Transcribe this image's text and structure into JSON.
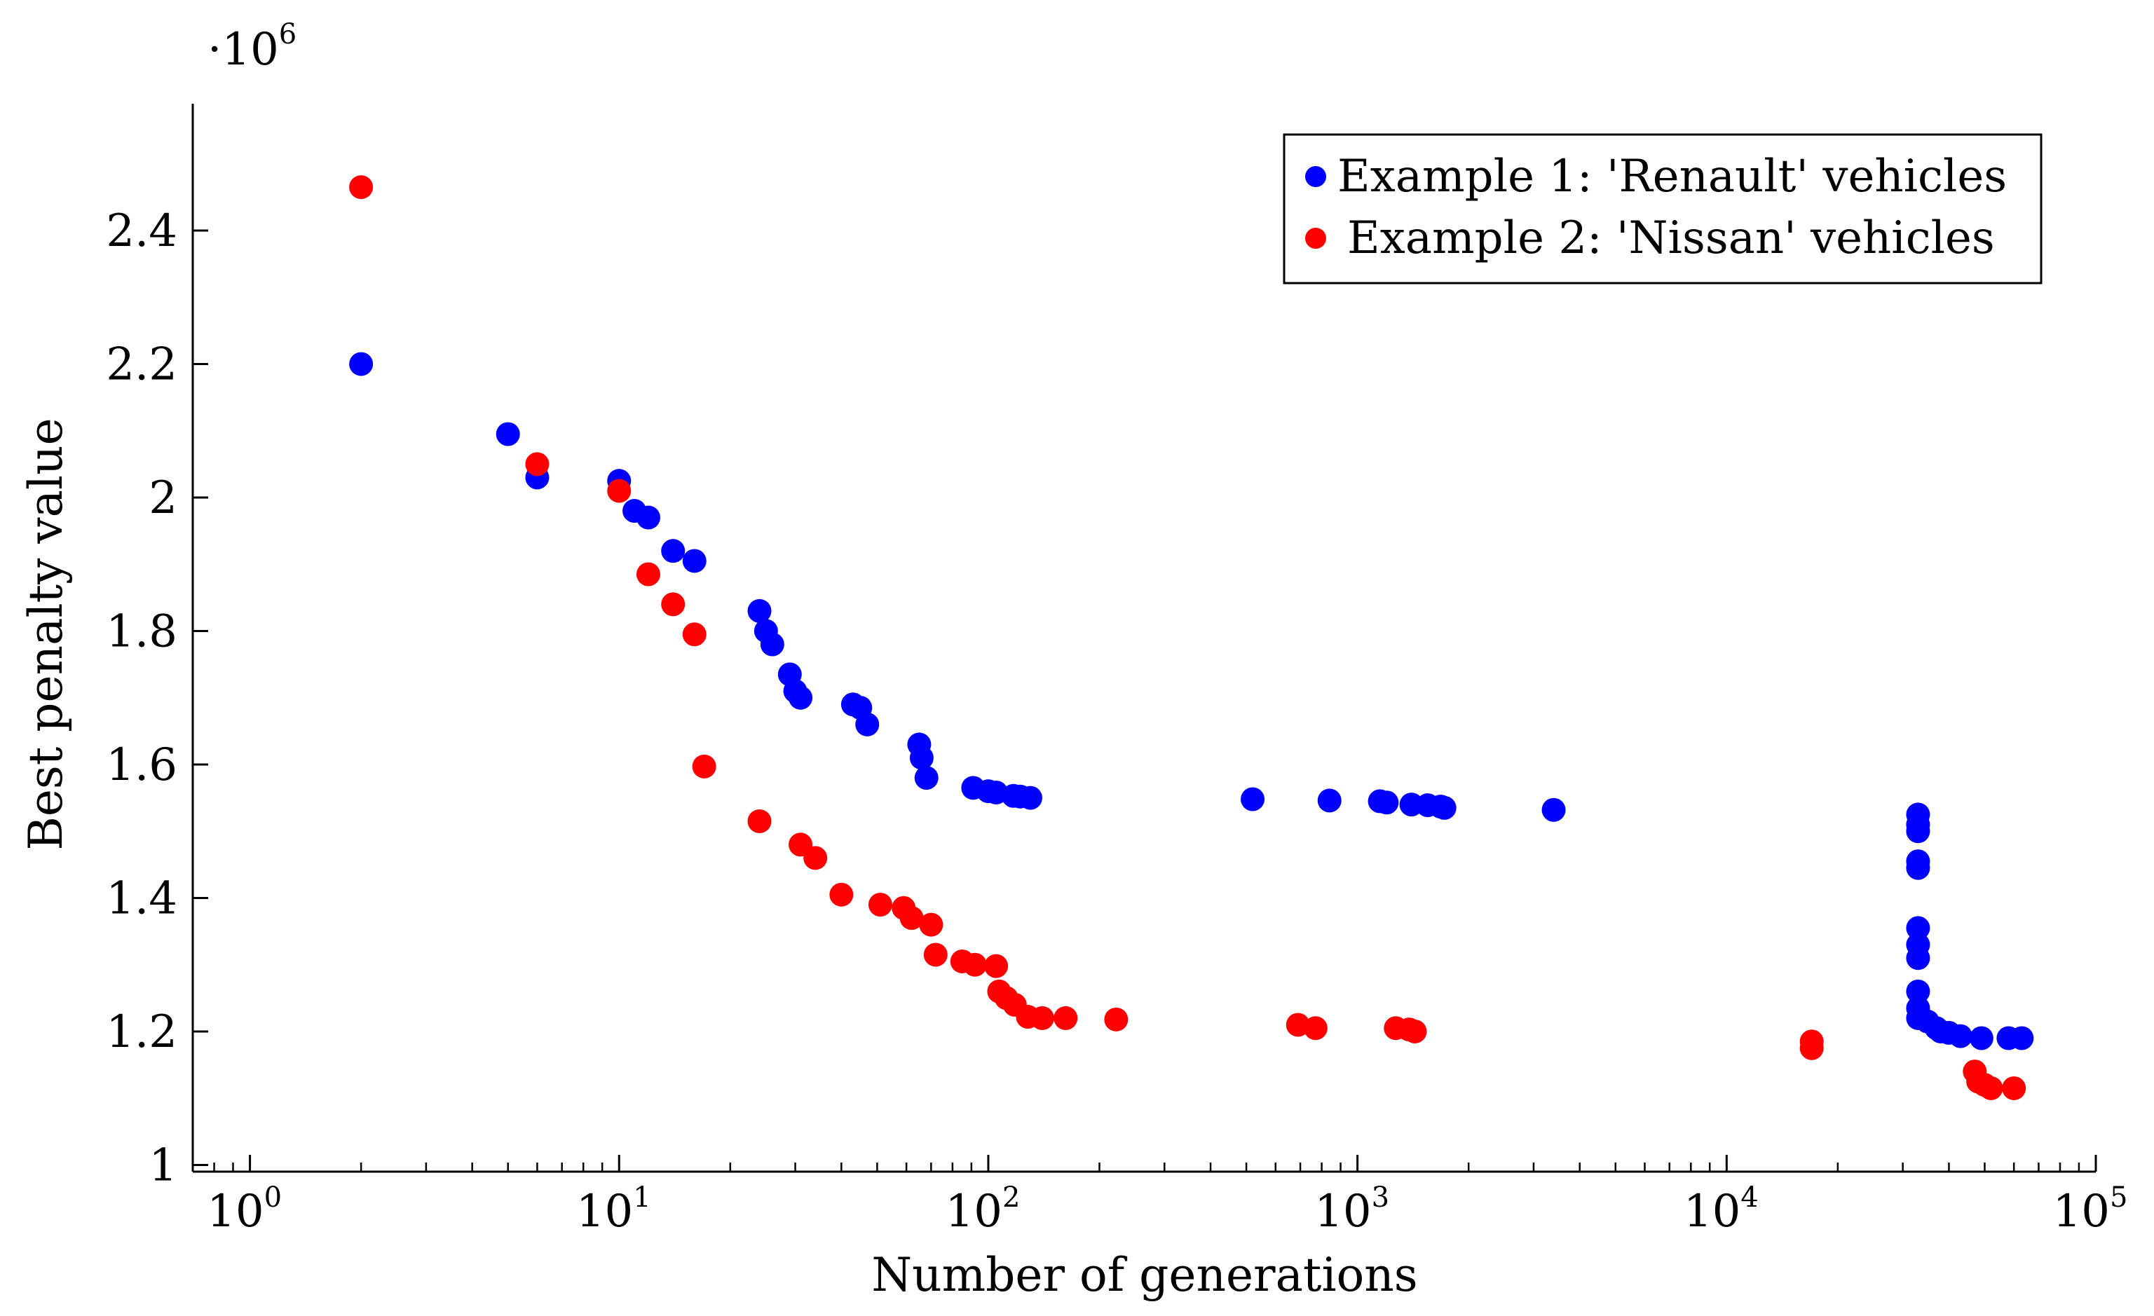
{
  "chart_data": {
    "type": "scatter",
    "title": "",
    "xlabel": "Number of generations",
    "ylabel": "Best penalty value",
    "xscale": "log",
    "xlim": [
      0.7,
      100000
    ],
    "ylim": [
      0.99,
      2.59
    ],
    "y_multiplier": {
      "base": "·10",
      "exp": "6"
    },
    "grid": false,
    "legend_position": "top-right",
    "x_ticks": [
      {
        "base": "10",
        "exp": "0",
        "value": 1
      },
      {
        "base": "10",
        "exp": "1",
        "value": 10
      },
      {
        "base": "10",
        "exp": "2",
        "value": 100
      },
      {
        "base": "10",
        "exp": "3",
        "value": 1000
      },
      {
        "base": "10",
        "exp": "4",
        "value": 10000
      },
      {
        "base": "10",
        "exp": "5",
        "value": 100000
      }
    ],
    "y_ticks": [
      {
        "label": "1",
        "value": 1.0
      },
      {
        "label": "1.2",
        "value": 1.2
      },
      {
        "label": "1.4",
        "value": 1.4
      },
      {
        "label": "1.6",
        "value": 1.6
      },
      {
        "label": "1.8",
        "value": 1.8
      },
      {
        "label": "2",
        "value": 2.0
      },
      {
        "label": "2.2",
        "value": 2.2
      },
      {
        "label": "2.4",
        "value": 2.4
      }
    ],
    "series": [
      {
        "name": "Example 1: 'Renault' vehicles",
        "color": "#0000ff",
        "points": [
          [
            2,
            2.2
          ],
          [
            5,
            2.095
          ],
          [
            6,
            2.03
          ],
          [
            10,
            2.025
          ],
          [
            11,
            1.98
          ],
          [
            12,
            1.97
          ],
          [
            14,
            1.92
          ],
          [
            16,
            1.905
          ],
          [
            24,
            1.83
          ],
          [
            25,
            1.8
          ],
          [
            26,
            1.78
          ],
          [
            29,
            1.735
          ],
          [
            30,
            1.71
          ],
          [
            31,
            1.7
          ],
          [
            43,
            1.69
          ],
          [
            45,
            1.685
          ],
          [
            47,
            1.66
          ],
          [
            65,
            1.63
          ],
          [
            66,
            1.61
          ],
          [
            68,
            1.58
          ],
          [
            91,
            1.565
          ],
          [
            100,
            1.56
          ],
          [
            105,
            1.558
          ],
          [
            117,
            1.553
          ],
          [
            122,
            1.552
          ],
          [
            130,
            1.55
          ],
          [
            520,
            1.548
          ],
          [
            840,
            1.546
          ],
          [
            1150,
            1.545
          ],
          [
            1200,
            1.543
          ],
          [
            1400,
            1.54
          ],
          [
            1550,
            1.539
          ],
          [
            1680,
            1.537
          ],
          [
            1720,
            1.535
          ],
          [
            3400,
            1.532
          ],
          [
            33000,
            1.525
          ],
          [
            33000,
            1.51
          ],
          [
            33000,
            1.5
          ],
          [
            33000,
            1.455
          ],
          [
            33000,
            1.445
          ],
          [
            33000,
            1.355
          ],
          [
            33000,
            1.33
          ],
          [
            33000,
            1.31
          ],
          [
            33000,
            1.26
          ],
          [
            33000,
            1.235
          ],
          [
            33000,
            1.22
          ],
          [
            35000,
            1.215
          ],
          [
            37000,
            1.205
          ],
          [
            38000,
            1.2
          ],
          [
            40000,
            1.198
          ],
          [
            43000,
            1.193
          ],
          [
            49000,
            1.19
          ],
          [
            58000,
            1.19
          ],
          [
            63000,
            1.19
          ]
        ]
      },
      {
        "name": "Example 2: 'Nissan' vehicles",
        "color": "#ff0000",
        "points": [
          [
            2,
            2.465
          ],
          [
            6,
            2.05
          ],
          [
            10,
            2.01
          ],
          [
            12,
            1.885
          ],
          [
            14,
            1.84
          ],
          [
            16,
            1.795
          ],
          [
            17,
            1.597
          ],
          [
            24,
            1.515
          ],
          [
            31,
            1.48
          ],
          [
            34,
            1.46
          ],
          [
            40,
            1.405
          ],
          [
            51,
            1.39
          ],
          [
            59,
            1.385
          ],
          [
            62,
            1.37
          ],
          [
            70,
            1.36
          ],
          [
            72,
            1.315
          ],
          [
            85,
            1.305
          ],
          [
            92,
            1.3
          ],
          [
            105,
            1.298
          ],
          [
            107,
            1.26
          ],
          [
            112,
            1.25
          ],
          [
            118,
            1.24
          ],
          [
            128,
            1.222
          ],
          [
            140,
            1.22
          ],
          [
            162,
            1.22
          ],
          [
            222,
            1.218
          ],
          [
            690,
            1.21
          ],
          [
            770,
            1.205
          ],
          [
            1270,
            1.205
          ],
          [
            1380,
            1.203
          ],
          [
            1430,
            1.2
          ],
          [
            17000,
            1.185
          ],
          [
            17000,
            1.175
          ],
          [
            47000,
            1.14
          ],
          [
            48000,
            1.125
          ],
          [
            50000,
            1.12
          ],
          [
            52000,
            1.115
          ],
          [
            60000,
            1.115
          ]
        ]
      }
    ]
  }
}
